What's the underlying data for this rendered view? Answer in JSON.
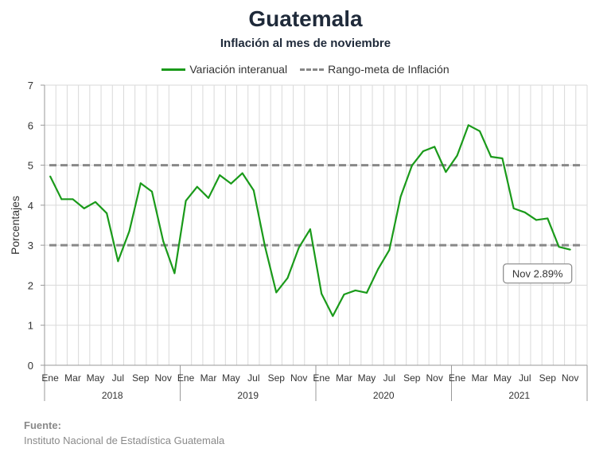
{
  "chart_data": {
    "type": "line",
    "title": "Guatemala",
    "subtitle": "Inflación al mes de noviembre",
    "ylabel": "Porcentajes",
    "xlabel": "",
    "ylim": [
      0,
      7
    ],
    "yticks": [
      0,
      1,
      2,
      3,
      4,
      5,
      6,
      7
    ],
    "grid": true,
    "legend_position": "top",
    "month_labels": [
      "Ene",
      "Mar",
      "May",
      "Jul",
      "Sep",
      "Nov"
    ],
    "years": [
      "2018",
      "2019",
      "2020",
      "2021"
    ],
    "series": [
      {
        "name": "Variación interanual",
        "color": "#1a9a1a",
        "style": "solid",
        "values": [
          4.72,
          4.15,
          4.15,
          3.92,
          4.08,
          3.8,
          2.6,
          3.35,
          4.55,
          4.34,
          3.1,
          2.3,
          4.11,
          4.46,
          4.18,
          4.75,
          4.54,
          4.8,
          4.37,
          2.97,
          1.82,
          2.18,
          2.94,
          3.4,
          1.79,
          1.23,
          1.77,
          1.87,
          1.81,
          2.4,
          2.88,
          4.21,
          4.99,
          5.35,
          5.46,
          4.83,
          5.24,
          6.0,
          5.85,
          5.21,
          5.17,
          3.92,
          3.82,
          3.63,
          3.67,
          2.96,
          2.89
        ]
      },
      {
        "name": "Rango-meta de Inflación",
        "color": "#888888",
        "style": "dashed",
        "values_hline": [
          3,
          5
        ]
      }
    ],
    "annotation": "Nov 2.89%"
  },
  "source": {
    "label": "Fuente:",
    "text": "Instituto Nacional de Estadística Guatemala"
  }
}
